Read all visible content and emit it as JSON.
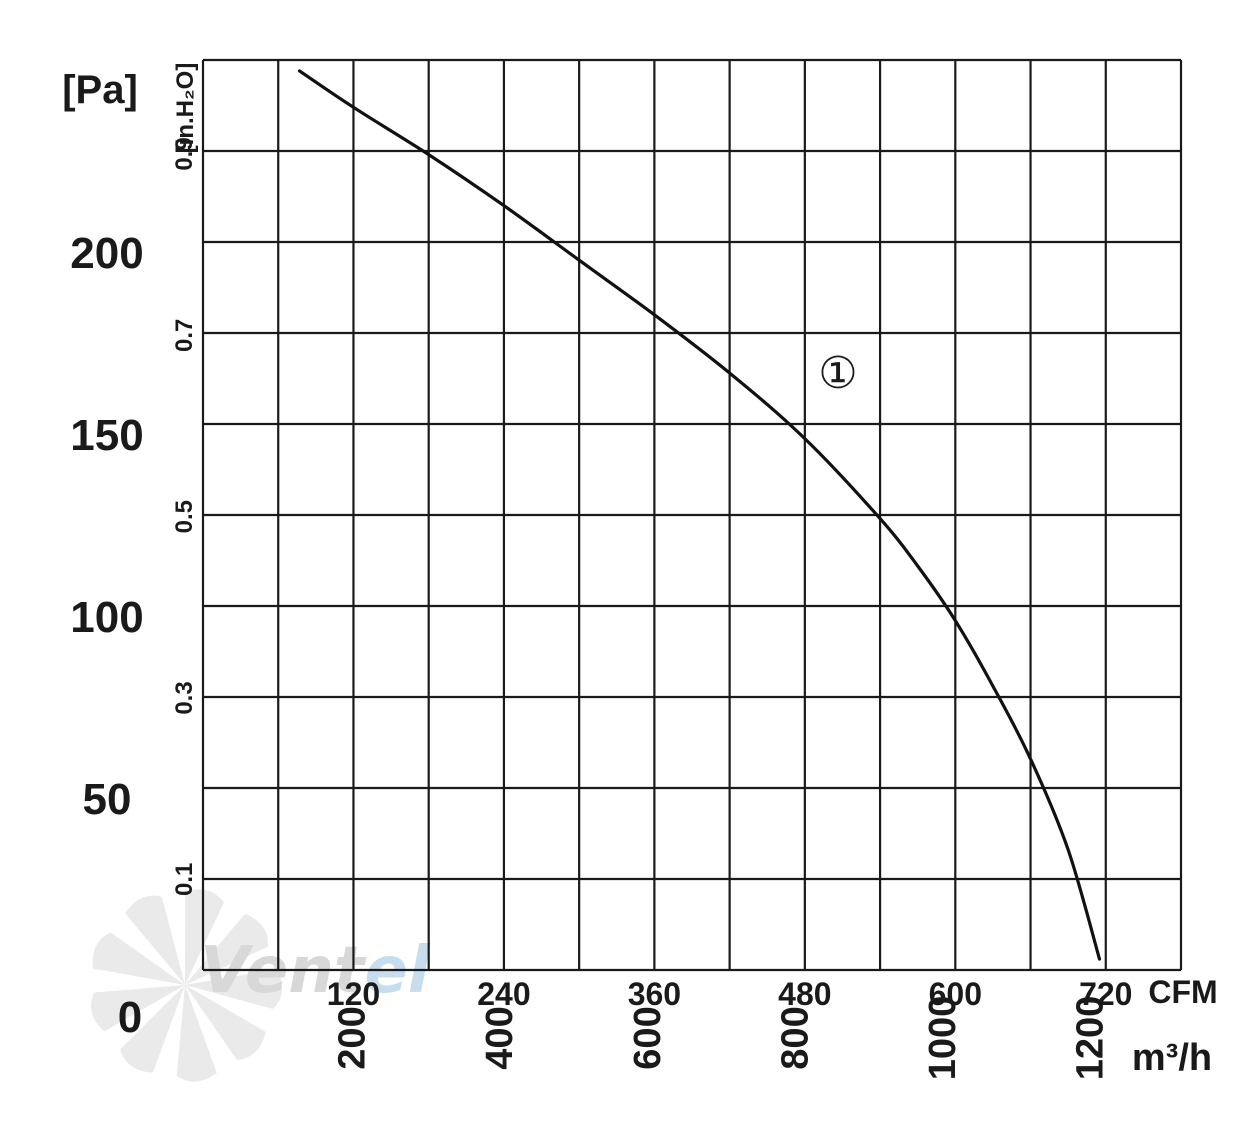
{
  "colors": {
    "grid": "#1a1a1a",
    "curve": "#111111",
    "watermark_grey": "#d8d8d8",
    "watermark_blue": "#c7dcec"
  },
  "watermark": {
    "text_a": "Vent",
    "text_b": "el"
  },
  "units": {
    "pa": "[Pa]",
    "inh2o": "[in.H₂O]",
    "cfm": "CFM",
    "m3h": "m³/h"
  },
  "curve_label": "①",
  "chart_data": {
    "type": "line",
    "x_unit": "CFM",
    "x_secondary_unit": "m³/h",
    "y_unit": "[Pa]",
    "y_secondary_unit": "[in.H₂O]",
    "xlim": [
      0,
      780
    ],
    "ylim": [
      0,
      250
    ],
    "y_ticks_pa": [
      "0",
      "50",
      "100",
      "150",
      "200"
    ],
    "y_ticks_inh2o": [
      "0.1",
      "0.3",
      "0.5",
      "0.7",
      "0.9"
    ],
    "x_ticks_cfm": [
      "120",
      "240",
      "360",
      "480",
      "600",
      "720"
    ],
    "x_ticks_m3h": [
      "200",
      "400",
      "600",
      "800",
      "1000",
      "1200"
    ],
    "series": [
      {
        "name": "①",
        "x": [
          77,
          120,
          180,
          240,
          300,
          360,
          420,
          480,
          540,
          570,
          600,
          630,
          660,
          690,
          715
        ],
        "y": [
          247,
          237,
          224,
          210,
          195,
          180,
          164,
          146,
          124,
          111,
          96,
          78,
          58,
          33,
          3
        ]
      }
    ]
  }
}
